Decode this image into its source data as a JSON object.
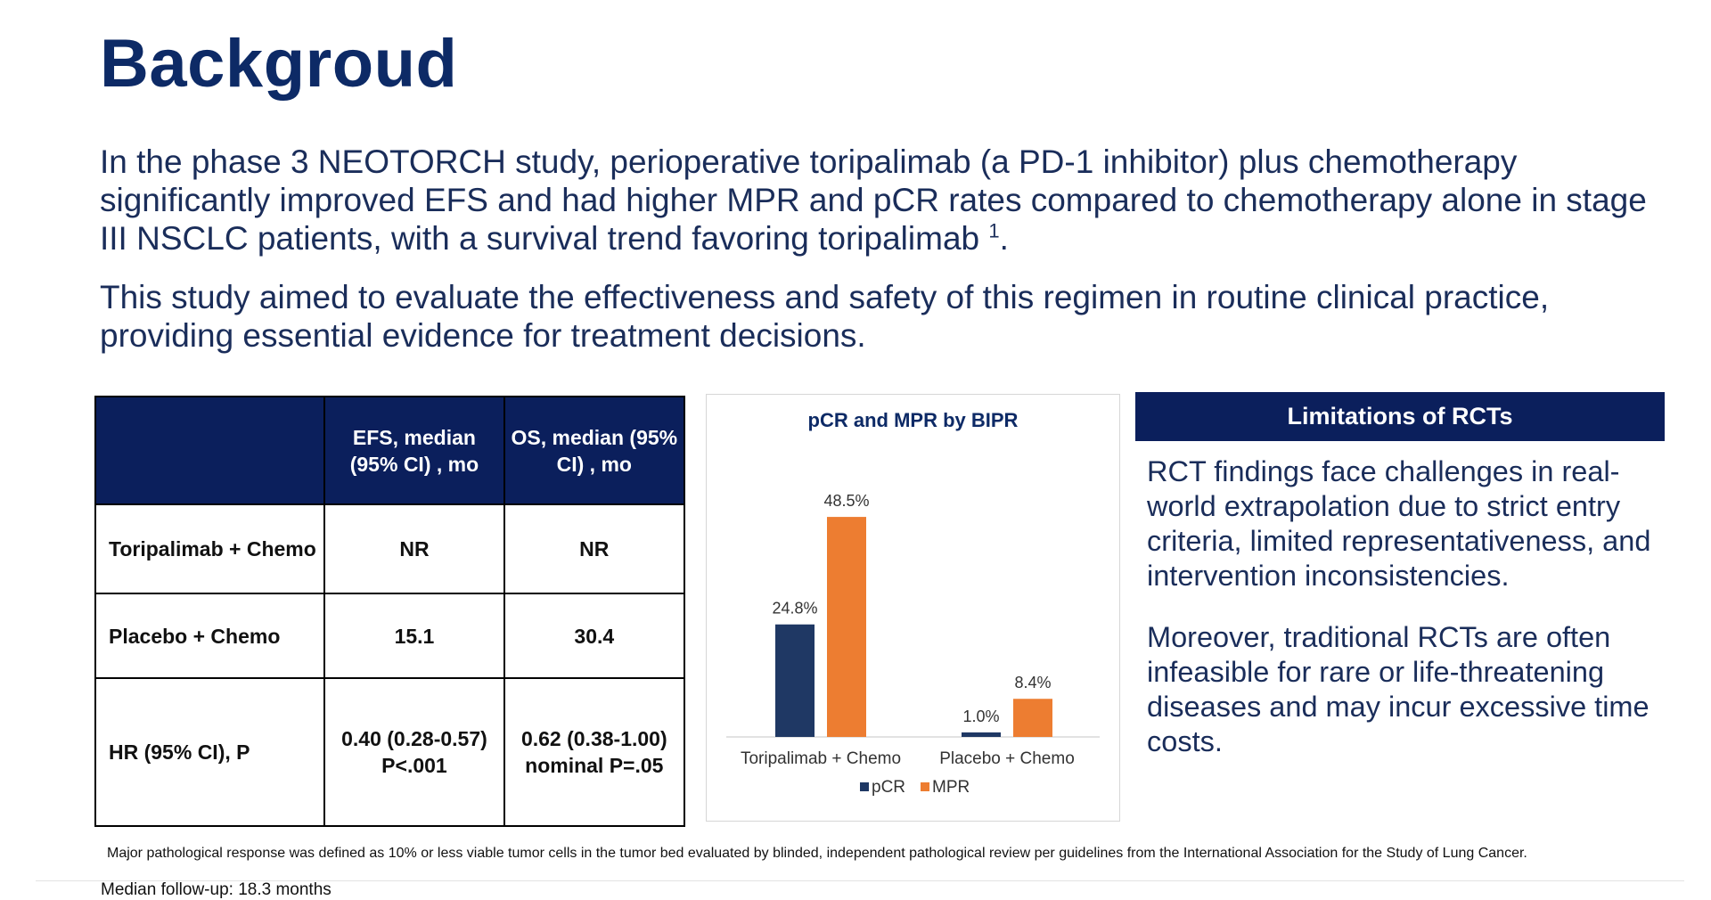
{
  "title": "Backgroud",
  "intro": {
    "p1_text": "In the phase 3 NEOTORCH study, perioperative toripalimab (a PD-1 inhibitor) plus chemotherapy significantly improved EFS and had higher MPR and pCR rates compared to chemotherapy alone in stage III NSCLC patients, with a survival trend favoring toripalimab ",
    "p1_sup": "1",
    "p1_end": ".",
    "p2_text": "This study aimed to evaluate the effectiveness and safety of this regimen in routine clinical practice, providing essential evidence for treatment decisions."
  },
  "table": {
    "headers": [
      "",
      "EFS, median (95% CI) , mo",
      "OS, median (95% CI) , mo"
    ],
    "rows": [
      {
        "label": "Toripalimab + Chemo",
        "efs": "NR",
        "os": "NR"
      },
      {
        "label": "Placebo + Chemo",
        "efs": "15.1",
        "os": "30.4"
      },
      {
        "label": "HR (95% CI), P",
        "efs": "0.40 (0.28-0.57) P<.001",
        "os": "0.62 (0.38-1.00) nominal P=.05"
      }
    ],
    "header_color": "#0b1f5c"
  },
  "chart_data": {
    "type": "bar",
    "title": "pCR and MPR by BIPR",
    "categories": [
      "Toripalimab + Chemo",
      "Placebo + Chemo"
    ],
    "series": [
      {
        "name": "pCR",
        "values": [
          24.8,
          1.0
        ],
        "labels": [
          "24.8%",
          "1.0%"
        ],
        "color": "#1f3864"
      },
      {
        "name": "MPR",
        "values": [
          48.5,
          8.4
        ],
        "labels": [
          "48.5%",
          "8.4%"
        ],
        "color": "#ed7d31"
      }
    ],
    "xlabel": "",
    "ylabel": "",
    "grid": false,
    "legend": "bottom"
  },
  "limitations": {
    "header": "Limitations of RCTs",
    "p1": "RCT findings face challenges in real-world extrapolation due to strict entry criteria, limited representativeness, and intervention inconsistencies.",
    "p2": "Moreover, traditional RCTs are often infeasible for rare or life-threatening diseases and may incur excessive time costs."
  },
  "footnote": "Major pathological response was defined as 10% or less viable tumor cells in the tumor bed evaluated by blinded, independent pathological review per guidelines from the International Association for the Study of Lung Cancer.",
  "followup": "Median follow-up: 18.3 months"
}
